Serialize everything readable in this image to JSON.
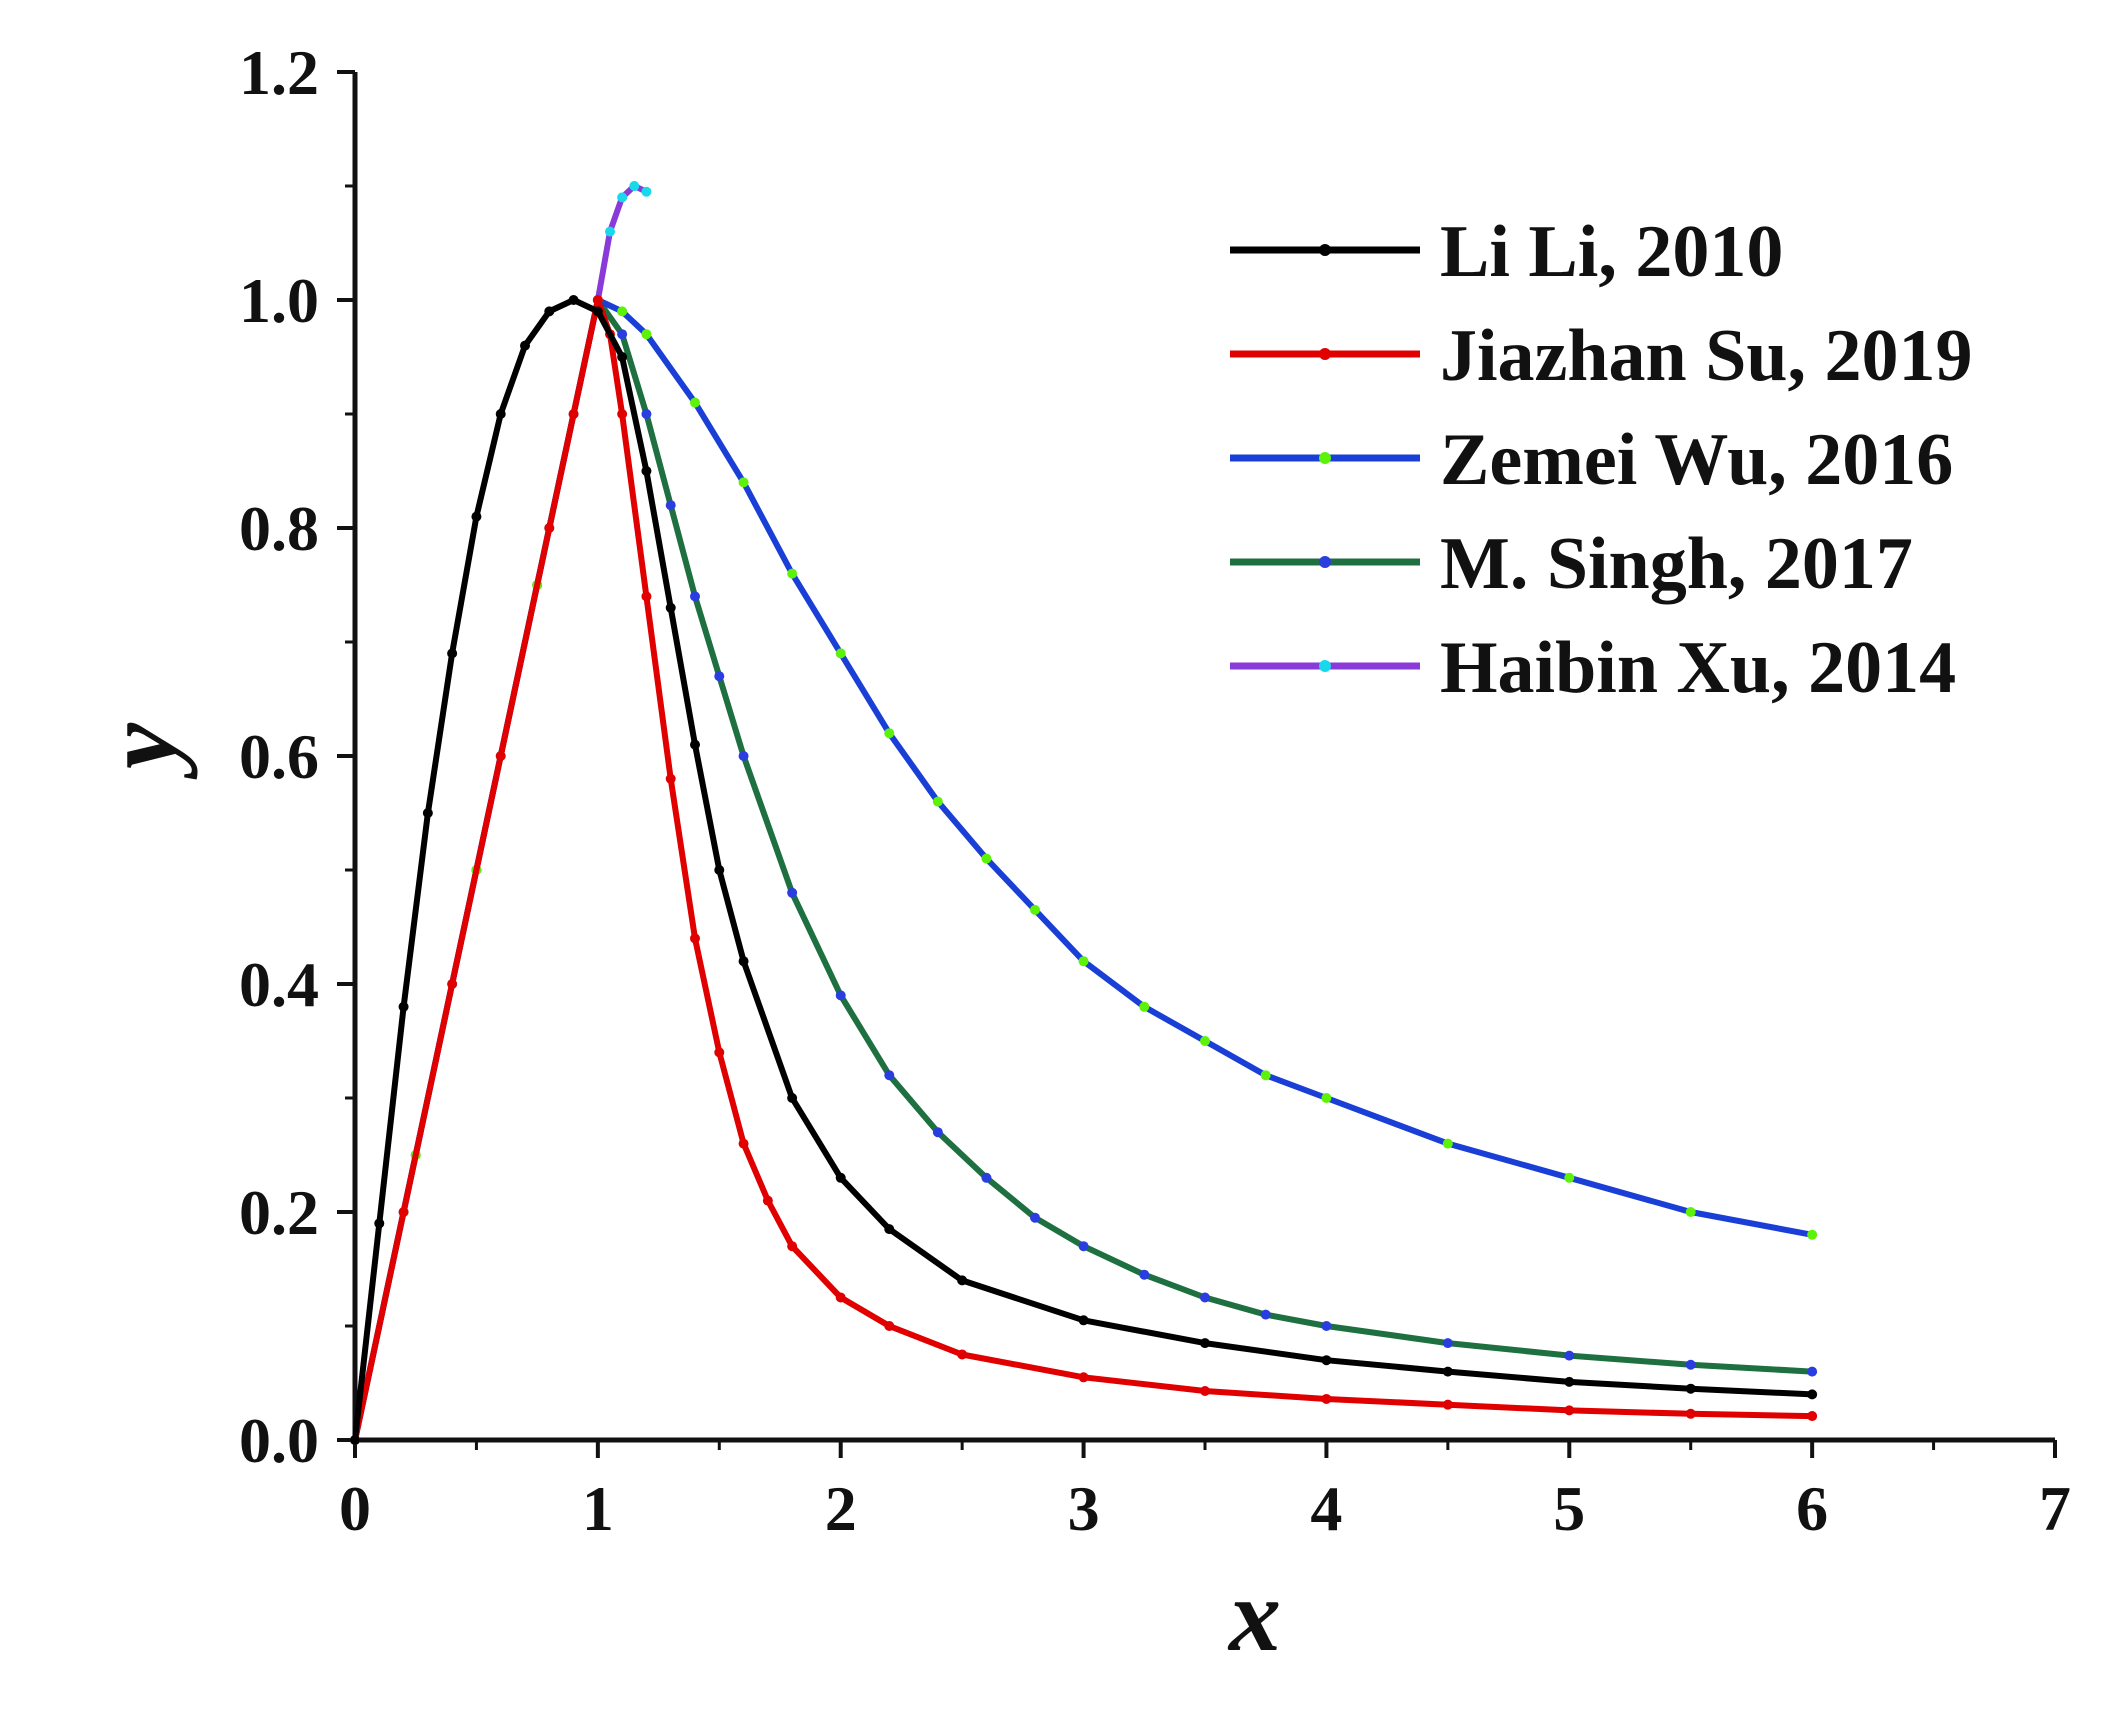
{
  "chart_data": {
    "type": "line",
    "title": "",
    "xlabel": "x",
    "ylabel": "y",
    "xlim": [
      0,
      7
    ],
    "ylim": [
      0,
      1.2
    ],
    "x_ticks": [
      "0",
      "1",
      "2",
      "3",
      "4",
      "5",
      "6",
      "7"
    ],
    "y_ticks": [
      "0.0",
      "0.2",
      "0.4",
      "0.6",
      "0.8",
      "1.0",
      "1.2"
    ],
    "grid": false,
    "legend_position": "top-right",
    "series": [
      {
        "name": "Li Li, 2010",
        "color": "#000000",
        "marker_color": "#000000",
        "x": [
          0,
          0.1,
          0.2,
          0.3,
          0.4,
          0.5,
          0.6,
          0.7,
          0.8,
          0.9,
          1.0,
          1.1,
          1.2,
          1.3,
          1.4,
          1.5,
          1.6,
          1.8,
          2.0,
          2.2,
          2.5,
          3.0,
          3.5,
          4.0,
          4.5,
          5.0,
          5.5,
          6.0
        ],
        "y": [
          0,
          0.19,
          0.38,
          0.55,
          0.69,
          0.81,
          0.9,
          0.96,
          0.99,
          1.0,
          0.99,
          0.95,
          0.85,
          0.73,
          0.61,
          0.5,
          0.42,
          0.3,
          0.23,
          0.185,
          0.14,
          0.105,
          0.085,
          0.07,
          0.06,
          0.051,
          0.045,
          0.04
        ]
      },
      {
        "name": "Jiazhan Su, 2019",
        "color": "#e00000",
        "marker_color": "#e00000",
        "x": [
          0,
          0.2,
          0.4,
          0.6,
          0.8,
          0.9,
          1.0,
          1.05,
          1.1,
          1.2,
          1.3,
          1.4,
          1.5,
          1.6,
          1.7,
          1.8,
          2.0,
          2.2,
          2.5,
          3.0,
          3.5,
          4.0,
          4.5,
          5.0,
          5.5,
          6.0
        ],
        "y": [
          0,
          0.2,
          0.4,
          0.6,
          0.8,
          0.9,
          1.0,
          0.97,
          0.9,
          0.74,
          0.58,
          0.44,
          0.34,
          0.26,
          0.21,
          0.17,
          0.125,
          0.1,
          0.075,
          0.055,
          0.043,
          0.036,
          0.031,
          0.026,
          0.023,
          0.021
        ]
      },
      {
        "name": "Zemei Wu, 2016",
        "color": "#1a3fd6",
        "marker_color": "#5df20a",
        "x": [
          0,
          0.25,
          0.5,
          0.75,
          1.0,
          1.1,
          1.2,
          1.4,
          1.6,
          1.8,
          2.0,
          2.2,
          2.4,
          2.6,
          2.8,
          3.0,
          3.25,
          3.5,
          3.75,
          4.0,
          4.5,
          5.0,
          5.5,
          6.0
        ],
        "y": [
          0,
          0.25,
          0.5,
          0.75,
          1.0,
          0.99,
          0.97,
          0.91,
          0.84,
          0.76,
          0.69,
          0.62,
          0.56,
          0.51,
          0.465,
          0.42,
          0.38,
          0.35,
          0.32,
          0.3,
          0.26,
          0.23,
          0.2,
          0.18
        ]
      },
      {
        "name": "M. Singh, 2017",
        "color": "#1e7040",
        "marker_color": "#2a3ee0",
        "x": [
          0,
          0.25,
          0.5,
          0.75,
          1.0,
          1.1,
          1.2,
          1.3,
          1.4,
          1.5,
          1.6,
          1.8,
          2.0,
          2.2,
          2.4,
          2.6,
          2.8,
          3.0,
          3.25,
          3.5,
          3.75,
          4.0,
          4.5,
          5.0,
          5.5,
          6.0
        ],
        "y": [
          0,
          0.25,
          0.5,
          0.75,
          1.0,
          0.97,
          0.9,
          0.82,
          0.74,
          0.67,
          0.6,
          0.48,
          0.39,
          0.32,
          0.27,
          0.23,
          0.195,
          0.17,
          0.145,
          0.125,
          0.11,
          0.1,
          0.085,
          0.074,
          0.066,
          0.06
        ]
      },
      {
        "name": "Haibin Xu, 2014",
        "color": "#8a3ad8",
        "marker_color": "#1ad8ec",
        "x": [
          0,
          0.2,
          0.4,
          0.6,
          0.8,
          0.9,
          1.0,
          1.05,
          1.1,
          1.15,
          1.2
        ],
        "y": [
          0,
          0.2,
          0.4,
          0.6,
          0.8,
          0.9,
          1.0,
          1.06,
          1.09,
          1.1,
          1.095
        ]
      }
    ]
  }
}
